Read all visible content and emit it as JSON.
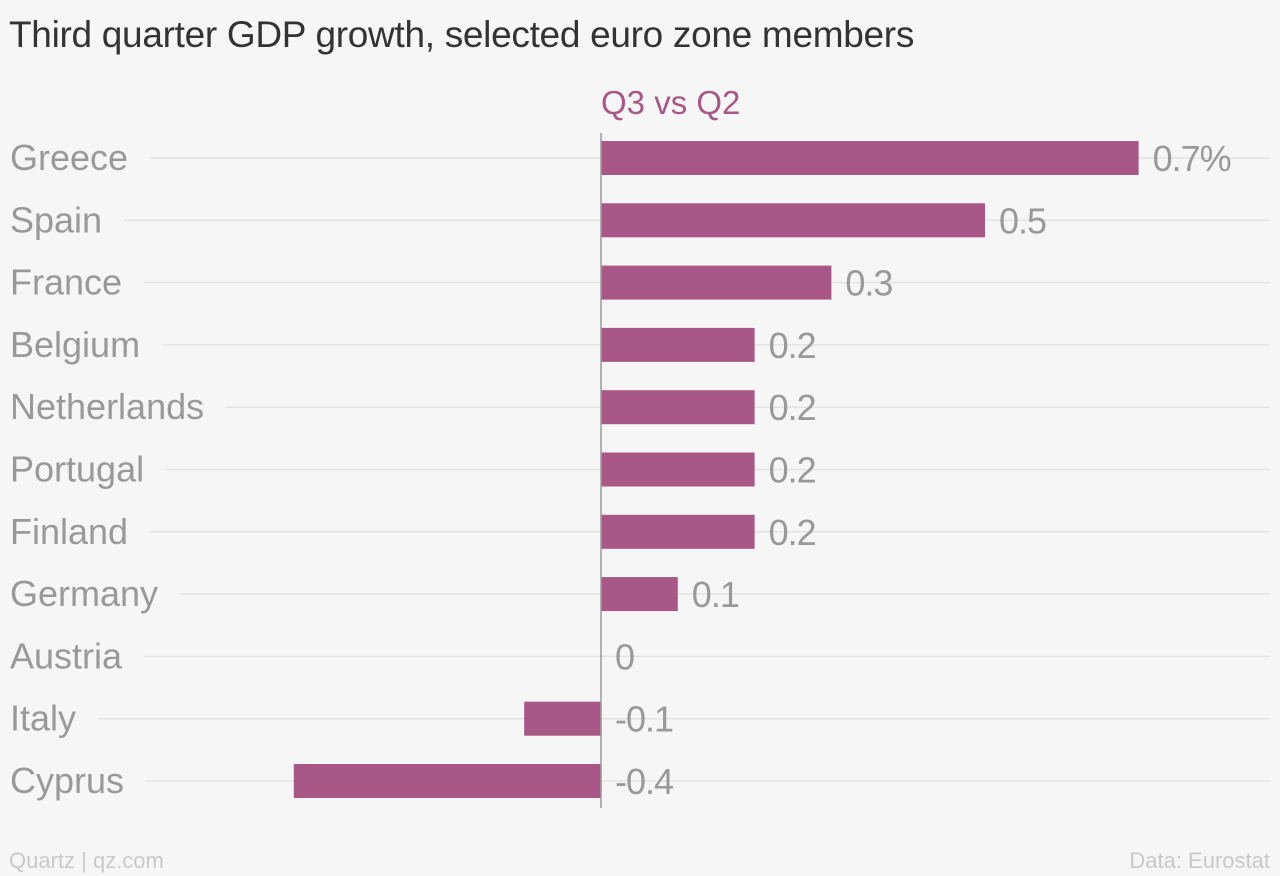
{
  "title": "Third quarter GDP growth, selected euro zone members",
  "footer": {
    "source_brand": "Quartz | qz.com",
    "data_source": "Data: Eurostat"
  },
  "colors": {
    "bar": "#a85786",
    "series_label": "#a85786",
    "category_label": "#999999",
    "value_label": "#999999",
    "gridline": "#e3e3e3",
    "zero_axis": "#9a9a9a",
    "background": "#f6f6f6"
  },
  "chart_data": {
    "type": "bar",
    "orientation": "horizontal",
    "title": "Third quarter GDP growth, selected euro zone members",
    "categories": [
      "Greece",
      "Spain",
      "France",
      "Belgium",
      "Netherlands",
      "Portugal",
      "Finland",
      "Germany",
      "Austria",
      "Italy",
      "Cyprus"
    ],
    "series": [
      {
        "name": "Q3 vs Q2",
        "values": [
          0.7,
          0.5,
          0.3,
          0.2,
          0.2,
          0.2,
          0.2,
          0.1,
          0,
          -0.1,
          -0.4
        ],
        "value_labels": [
          "0.7%",
          "0.5",
          "0.3",
          "0.2",
          "0.2",
          "0.2",
          "0.2",
          "0.1",
          "0",
          "-0.1",
          "-0.4"
        ]
      }
    ],
    "xlim": [
      -0.4,
      0.7
    ],
    "unit": "%",
    "grid": true
  }
}
